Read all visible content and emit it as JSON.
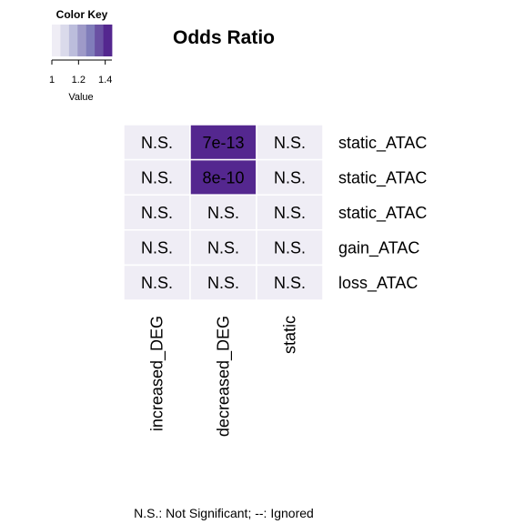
{
  "chart_data": {
    "type": "heatmap",
    "title": "Odds Ratio",
    "rows": [
      "static_ATAC",
      "static_ATAC",
      "static_ATAC",
      "gain_ATAC",
      "loss_ATAC"
    ],
    "columns": [
      "increased_DEG",
      "decreased_DEG",
      "static"
    ],
    "cell_labels": [
      [
        "N.S.",
        "7e-13",
        "N.S."
      ],
      [
        "N.S.",
        "8e-10",
        "N.S."
      ],
      [
        "N.S.",
        "N.S.",
        "N.S."
      ],
      [
        "N.S.",
        "N.S.",
        "N.S."
      ],
      [
        "N.S.",
        "N.S.",
        "N.S."
      ]
    ],
    "values": [
      [
        1.0,
        1.45,
        1.0
      ],
      [
        1.0,
        1.45,
        1.0
      ],
      [
        1.0,
        1.0,
        1.0
      ],
      [
        1.0,
        1.0,
        1.0
      ],
      [
        1.0,
        1.0,
        1.0
      ]
    ],
    "color_key": {
      "title": "Color Key",
      "xlabel": "Value",
      "range": [
        1,
        1.45
      ],
      "tick_values": [
        1,
        1.2,
        1.4
      ],
      "tick_labels": [
        "1",
        "1.2",
        "1.4"
      ],
      "colors": [
        "#efedf5",
        "#dadaeb",
        "#bcbddc",
        "#9e9ac8",
        "#807dba",
        "#6a51a3",
        "#54278f"
      ]
    },
    "footnote": "N.S.: Not Significant; --: Ignored"
  }
}
